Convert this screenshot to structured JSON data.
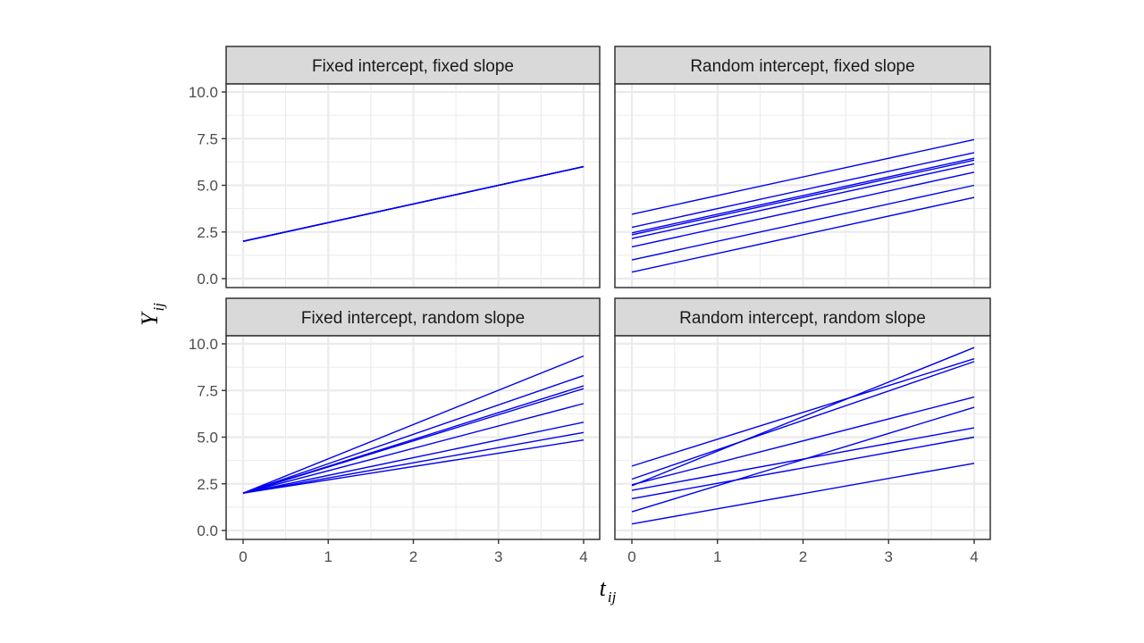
{
  "chart_data": {
    "type": "line",
    "layout": "facet-2x2",
    "xlabel": "t",
    "xlabel_subscript": "ij",
    "ylabel": "Y",
    "ylabel_subscript": "ij",
    "xlim": [
      0,
      4
    ],
    "ylim": [
      0,
      10
    ],
    "x_ticks": [
      "0",
      "1",
      "2",
      "3",
      "4"
    ],
    "y_ticks": [
      "0.0",
      "2.5",
      "5.0",
      "7.5",
      "10.0"
    ],
    "grid": true,
    "line_color": "#0000ee",
    "panels": [
      {
        "title": "Fixed intercept, fixed slope",
        "lines": [
          {
            "x": [
              0,
              4
            ],
            "y": [
              2.0,
              6.0
            ]
          },
          {
            "x": [
              0,
              4
            ],
            "y": [
              2.0,
              6.0
            ]
          },
          {
            "x": [
              0,
              4
            ],
            "y": [
              2.0,
              6.0
            ]
          },
          {
            "x": [
              0,
              4
            ],
            "y": [
              2.0,
              6.0
            ]
          },
          {
            "x": [
              0,
              4
            ],
            "y": [
              2.0,
              6.0
            ]
          },
          {
            "x": [
              0,
              4
            ],
            "y": [
              2.0,
              6.0
            ]
          },
          {
            "x": [
              0,
              4
            ],
            "y": [
              2.0,
              6.0
            ]
          },
          {
            "x": [
              0,
              4
            ],
            "y": [
              2.0,
              6.0
            ]
          }
        ]
      },
      {
        "title": "Random intercept, fixed slope",
        "lines": [
          {
            "x": [
              0,
              4
            ],
            "y": [
              3.45,
              7.45
            ]
          },
          {
            "x": [
              0,
              4
            ],
            "y": [
              2.75,
              6.75
            ]
          },
          {
            "x": [
              0,
              4
            ],
            "y": [
              2.45,
              6.45
            ]
          },
          {
            "x": [
              0,
              4
            ],
            "y": [
              2.35,
              6.35
            ]
          },
          {
            "x": [
              0,
              4
            ],
            "y": [
              2.15,
              6.15
            ]
          },
          {
            "x": [
              0,
              4
            ],
            "y": [
              1.7,
              5.7
            ]
          },
          {
            "x": [
              0,
              4
            ],
            "y": [
              1.0,
              5.0
            ]
          },
          {
            "x": [
              0,
              4
            ],
            "y": [
              0.35,
              4.35
            ]
          }
        ]
      },
      {
        "title": "Fixed intercept, random slope",
        "lines": [
          {
            "x": [
              0,
              4
            ],
            "y": [
              2.0,
              9.35
            ]
          },
          {
            "x": [
              0,
              4
            ],
            "y": [
              2.0,
              8.3
            ]
          },
          {
            "x": [
              0,
              4
            ],
            "y": [
              2.0,
              7.75
            ]
          },
          {
            "x": [
              0,
              4
            ],
            "y": [
              2.0,
              7.6
            ]
          },
          {
            "x": [
              0,
              4
            ],
            "y": [
              2.0,
              6.8
            ]
          },
          {
            "x": [
              0,
              4
            ],
            "y": [
              2.0,
              5.8
            ]
          },
          {
            "x": [
              0,
              4
            ],
            "y": [
              2.0,
              5.25
            ]
          },
          {
            "x": [
              0,
              4
            ],
            "y": [
              2.0,
              4.85
            ]
          }
        ]
      },
      {
        "title": "Random intercept, random slope",
        "lines": [
          {
            "x": [
              0,
              4
            ],
            "y": [
              2.4,
              9.8
            ]
          },
          {
            "x": [
              0,
              4
            ],
            "y": [
              3.45,
              9.2
            ]
          },
          {
            "x": [
              0,
              4
            ],
            "y": [
              2.75,
              9.05
            ]
          },
          {
            "x": [
              0,
              4
            ],
            "y": [
              2.45,
              7.15
            ]
          },
          {
            "x": [
              0,
              4
            ],
            "y": [
              1.0,
              6.6
            ]
          },
          {
            "x": [
              0,
              4
            ],
            "y": [
              2.15,
              5.5
            ]
          },
          {
            "x": [
              0,
              4
            ],
            "y": [
              1.7,
              5.0
            ]
          },
          {
            "x": [
              0,
              4
            ],
            "y": [
              0.35,
              3.6
            ]
          }
        ]
      }
    ]
  }
}
